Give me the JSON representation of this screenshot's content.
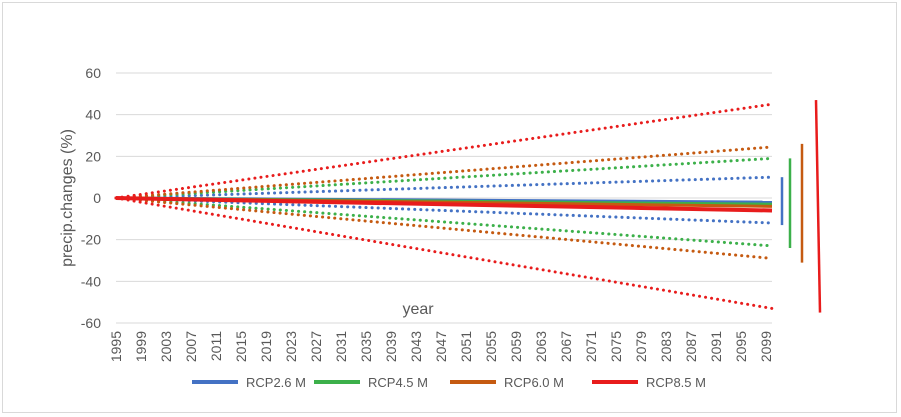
{
  "chart_data": {
    "type": "line",
    "xlabel": "year",
    "ylabel": "precip.changes (%)",
    "ylim": [
      -60,
      60
    ],
    "yticks": [
      -60,
      -40,
      -20,
      0,
      20,
      40,
      60
    ],
    "x_ticks": [
      "1995",
      "1999",
      "2003",
      "2007",
      "2011",
      "2015",
      "2019",
      "2023",
      "2027",
      "2031",
      "2035",
      "2039",
      "2043",
      "2047",
      "2051",
      "2055",
      "2059",
      "2063",
      "2067",
      "2071",
      "2075",
      "2079",
      "2083",
      "2087",
      "2091",
      "2095",
      "2099"
    ],
    "x_range": [
      1995,
      2100
    ],
    "grid": "horizontal",
    "legend_position": "bottom",
    "series": [
      {
        "name": "RCP2.6 M",
        "color": "#4472c4",
        "x": [
          1995,
          2100
        ],
        "y": [
          0,
          -2
        ],
        "style": "solid"
      },
      {
        "name": "RCP4.5 M",
        "color": "#3cb04a",
        "x": [
          1995,
          2100
        ],
        "y": [
          0,
          -3
        ],
        "style": "solid"
      },
      {
        "name": "RCP6.0 M",
        "color": "#c55a11",
        "x": [
          1995,
          2100
        ],
        "y": [
          0,
          -4
        ],
        "style": "solid"
      },
      {
        "name": "RCP8.5 M",
        "color": "#e81c1c",
        "x": [
          1995,
          2100
        ],
        "y": [
          0,
          -6
        ],
        "style": "solid"
      }
    ],
    "envelopes": [
      {
        "color": "#4472c4",
        "x": [
          1995,
          2100
        ],
        "upper": [
          0,
          10
        ],
        "lower": [
          0,
          -12
        ],
        "style": "dotted"
      },
      {
        "color": "#3cb04a",
        "x": [
          1995,
          2100
        ],
        "upper": [
          0,
          19
        ],
        "lower": [
          0,
          -23
        ],
        "style": "dotted"
      },
      {
        "color": "#c55a11",
        "x": [
          1995,
          2100
        ],
        "upper": [
          0,
          24.5
        ],
        "lower": [
          0,
          -29
        ],
        "style": "dotted"
      },
      {
        "color": "#e81c1c",
        "x": [
          1995,
          2100
        ],
        "upper": [
          0,
          45
        ],
        "lower": [
          0,
          -53
        ],
        "style": "dotted"
      }
    ],
    "range_bars": [
      {
        "color": "#4472c4",
        "top": 10,
        "bottom": -13
      },
      {
        "color": "#3cb04a",
        "top": 19,
        "bottom": -24
      },
      {
        "color": "#c55a11",
        "top": 26,
        "bottom": -31
      },
      {
        "color": "#e81c1c",
        "top": 47,
        "bottom": -55
      }
    ]
  }
}
